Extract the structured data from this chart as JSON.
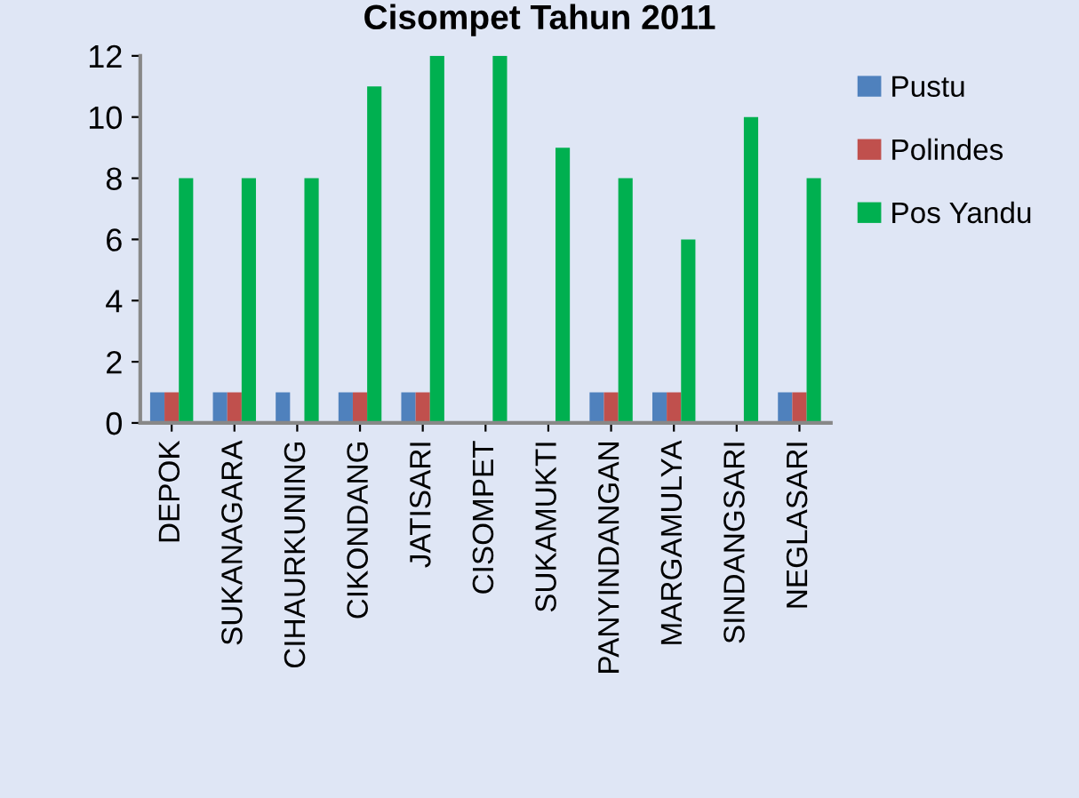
{
  "chart_data": {
    "type": "bar",
    "title": "Cisompet Tahun 2011",
    "categories": [
      "DEPOK",
      "SUKANAGARA",
      "CIHAURKUNING",
      "CIKONDANG",
      "JATISARI",
      "CISOMPET",
      "SUKAMUKTI",
      "PANYINDANGAN",
      "MARGAMULYA",
      "SINDANGSARI",
      "NEGLASARI"
    ],
    "series": [
      {
        "name": "Pustu",
        "color": "#4f81bd",
        "values": [
          1,
          1,
          1,
          1,
          1,
          0,
          0,
          1,
          1,
          0,
          1
        ]
      },
      {
        "name": "Polindes",
        "color": "#c0504d",
        "values": [
          1,
          1,
          0,
          1,
          1,
          0,
          0,
          1,
          1,
          0,
          1
        ]
      },
      {
        "name": "Pos Yandu",
        "color": "#00b050",
        "values": [
          8,
          8,
          8,
          11,
          12,
          12,
          9,
          8,
          6,
          10,
          8
        ]
      }
    ],
    "ylim": [
      0,
      12
    ],
    "yticks": [
      0,
      2,
      4,
      6,
      8,
      10,
      12
    ],
    "grid": false,
    "legend": "right"
  }
}
